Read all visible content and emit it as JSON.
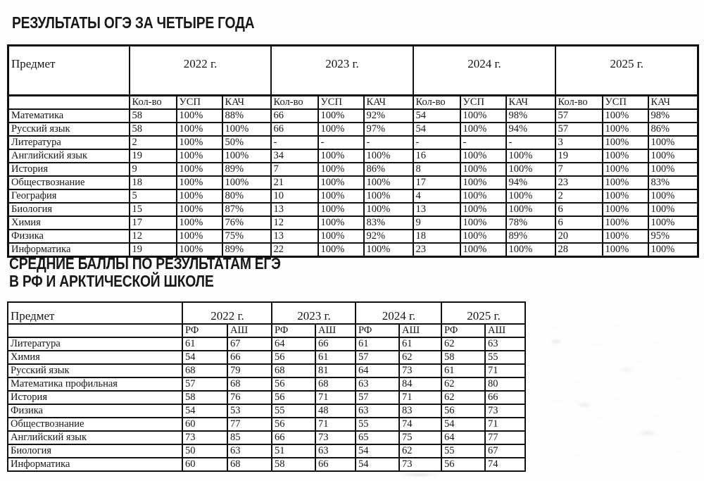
{
  "colors": {
    "background": "#fefefe",
    "text": "#141414",
    "border": "#0d0d0d"
  },
  "table1": {
    "title": "РЕЗУЛЬТАТЫ ОГЭ ЗА ЧЕТЫРЕ ГОДА",
    "subject_header": "Предмет",
    "year_headers": [
      "2022 г.",
      "2023 г.",
      "2024 г.",
      "2025 г."
    ],
    "sub_headers": [
      "Кол-во",
      "УСП",
      "КАЧ"
    ],
    "rows": [
      {
        "subject": "Математика",
        "values": [
          "58",
          "100%",
          "88%",
          "66",
          "100%",
          "92%",
          "54",
          "100%",
          "98%",
          "57",
          "100%",
          "98%"
        ]
      },
      {
        "subject": "Русский язык",
        "values": [
          "58",
          "100%",
          "100%",
          "66",
          "100%",
          "97%",
          "54",
          "100%",
          "94%",
          "57",
          "100%",
          "86%"
        ]
      },
      {
        "subject": "Литература",
        "values": [
          "2",
          "100%",
          "50%",
          "-",
          "-",
          "-",
          "-",
          "-",
          "-",
          "3",
          "100%",
          "100%"
        ]
      },
      {
        "subject": "Английский язык",
        "values": [
          "19",
          "100%",
          "100%",
          "34",
          "100%",
          "100%",
          "16",
          "100%",
          "100%",
          "19",
          "100%",
          "100%"
        ]
      },
      {
        "subject": "История",
        "values": [
          "9",
          "100%",
          "89%",
          "7",
          "100%",
          "86%",
          "8",
          "100%",
          "100%",
          "7",
          "100%",
          "100%"
        ]
      },
      {
        "subject": "Обществознание",
        "values": [
          "18",
          "100%",
          "100%",
          "21",
          "100%",
          "100%",
          "17",
          "100%",
          "94%",
          "23",
          "100%",
          "83%"
        ]
      },
      {
        "subject": "География",
        "values": [
          "5",
          "100%",
          "80%",
          "10",
          "100%",
          "100%",
          "4",
          "100%",
          "100%",
          "2",
          "100%",
          "100%"
        ]
      },
      {
        "subject": "Биология",
        "values": [
          "15",
          "100%",
          "87%",
          "13",
          "100%",
          "100%",
          "13",
          "100%",
          "100%",
          "6",
          "100%",
          "100%"
        ]
      },
      {
        "subject": "Химия",
        "values": [
          "17",
          "100%",
          "76%",
          "12",
          "100%",
          "83%",
          "9",
          "100%",
          "78%",
          "6",
          "100%",
          "100%"
        ]
      },
      {
        "subject": "Физика",
        "values": [
          "12",
          "100%",
          "75%",
          "13",
          "100%",
          "92%",
          "18",
          "100%",
          "89%",
          "20",
          "100%",
          "95%"
        ]
      },
      {
        "subject": "Информатика",
        "values": [
          "19",
          "100%",
          "89%",
          "22",
          "100%",
          "100%",
          "23",
          "100%",
          "100%",
          "28",
          "100%",
          "100%"
        ]
      }
    ]
  },
  "table2": {
    "title_line1": "СРЕДНИЕ БАЛЛЫ ПО РЕЗУЛЬТАТАМ ЕГЭ",
    "title_line2": "В РФ И АРКТИЧЕСКОЙ ШКОЛЕ",
    "subject_header": "Предмет",
    "year_headers": [
      "2022 г.",
      "2023 г.",
      "2024 г.",
      "2025 г."
    ],
    "sub_headers": [
      "РФ",
      "АШ"
    ],
    "rows": [
      {
        "subject": "Литература",
        "values": [
          "61",
          "67",
          "64",
          "66",
          "61",
          "61",
          "62",
          "63"
        ]
      },
      {
        "subject": "Химия",
        "values": [
          "54",
          "66",
          "56",
          "61",
          "57",
          "62",
          "58",
          "55"
        ]
      },
      {
        "subject": "Русский язык",
        "values": [
          "68",
          "79",
          "68",
          "81",
          "64",
          "73",
          "61",
          "71"
        ]
      },
      {
        "subject": "Математика профильная",
        "values": [
          "57",
          "68",
          "56",
          "68",
          "63",
          "84",
          "62",
          "80"
        ]
      },
      {
        "subject": "История",
        "values": [
          "58",
          "76",
          "56",
          "71",
          "57",
          "71",
          "62",
          "66"
        ]
      },
      {
        "subject": "Физика",
        "values": [
          "54",
          "53",
          "55",
          "48",
          "63",
          "83",
          "56",
          "73"
        ]
      },
      {
        "subject": "Обществознание",
        "values": [
          "60",
          "77",
          "56",
          "71",
          "55",
          "74",
          "54",
          "71"
        ]
      },
      {
        "subject": "Английский язык",
        "values": [
          "73",
          "85",
          "66",
          "73",
          "65",
          "75",
          "64",
          "77"
        ]
      },
      {
        "subject": "Биология",
        "values": [
          "50",
          "63",
          "51",
          "63",
          "54",
          "62",
          "55",
          "67"
        ]
      },
      {
        "subject": "Информатика",
        "values": [
          "60",
          "68",
          "58",
          "66",
          "54",
          "73",
          "56",
          "74"
        ]
      }
    ]
  }
}
